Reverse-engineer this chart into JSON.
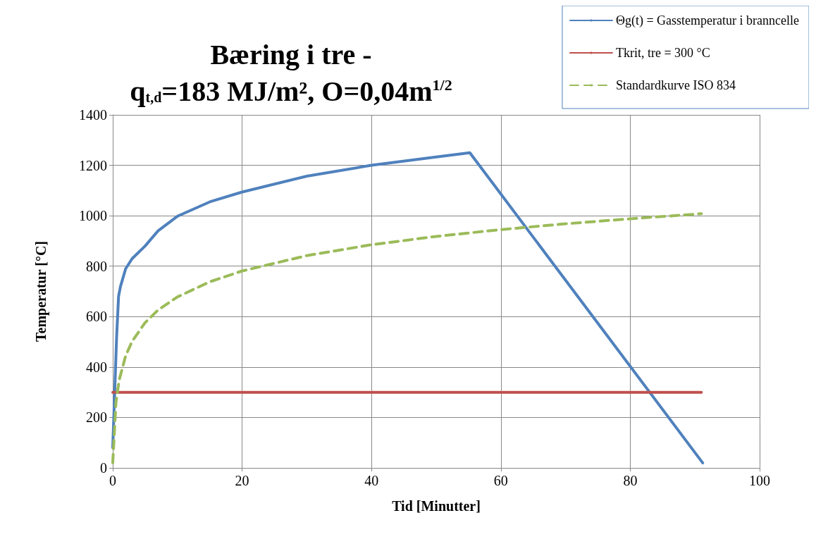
{
  "chart_data": {
    "type": "line",
    "title": "Bæring i tre -\nq$_{t,d}$=183 MJ/m², O=0,04m$^{1/2}$",
    "xlabel": "Tid [Minutter]",
    "ylabel": "Temperatur [°C]",
    "xlim": [
      0,
      100
    ],
    "xticks": [
      0,
      20,
      40,
      60,
      80,
      100
    ],
    "ylim": [
      0,
      1400
    ],
    "yticks": [
      0,
      200,
      400,
      600,
      800,
      1000,
      1200,
      1400
    ],
    "grid": true,
    "legend": "top right",
    "marker": "none",
    "series": [
      {
        "name": "Θg(t) = Gasstemperatur i branncelle",
        "color": "#4f81bd",
        "line_style": "solid",
        "x": [
          0,
          0.3,
          0.6,
          0.9,
          1.2,
          2,
          3,
          5,
          7,
          10,
          15,
          20,
          30,
          40,
          50,
          55.2,
          91.2
        ],
        "values": [
          80,
          300,
          520,
          680,
          720,
          790,
          830,
          880,
          940,
          998,
          1055,
          1094,
          1157,
          1200,
          1233,
          1250,
          20
        ]
      },
      {
        "name": "Tkrit, tre = 300 °C",
        "color": "#c0504d",
        "line_style": "solid",
        "x": [
          0,
          91
        ],
        "values": [
          300,
          300
        ]
      },
      {
        "name": "Standardkurve ISO 834",
        "color": "#9bbb59",
        "line_style": "dashed",
        "x": [
          0,
          0.5,
          1,
          2,
          3,
          5,
          7,
          10,
          15,
          20,
          30,
          40,
          50,
          60,
          70,
          80,
          91
        ],
        "values": [
          20,
          261,
          349,
          445,
          502,
          576,
          626,
          678,
          738,
          781,
          842,
          885,
          918,
          945,
          968,
          988,
          1008
        ]
      }
    ]
  }
}
